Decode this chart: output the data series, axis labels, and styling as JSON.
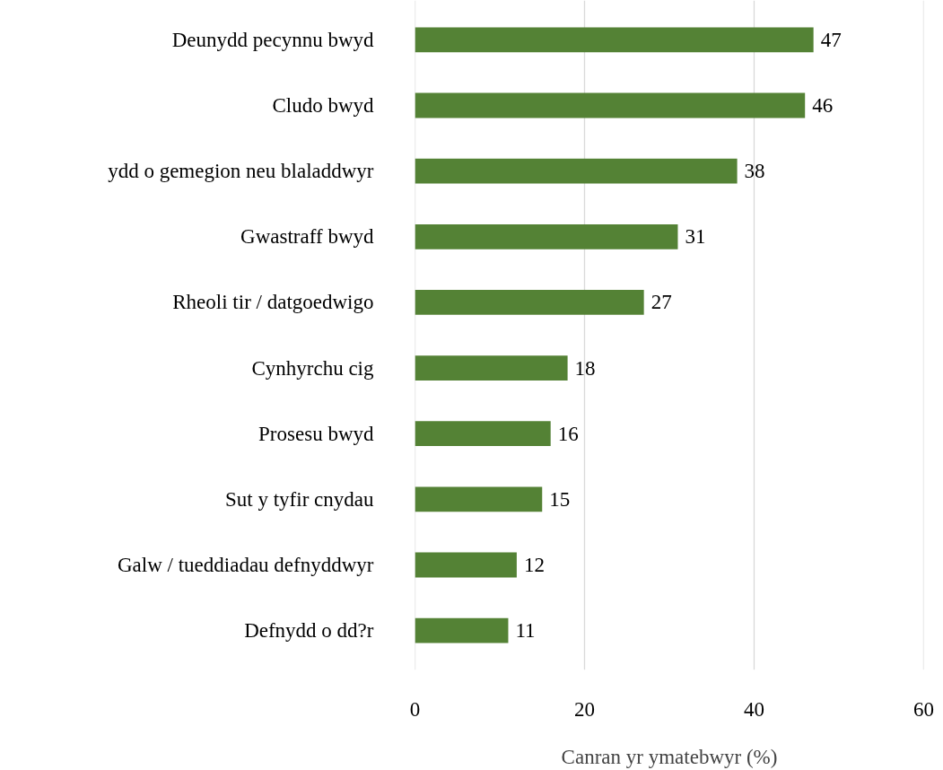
{
  "chart_data": {
    "type": "bar",
    "orientation": "horizontal",
    "xlabel": "Canran yr ymatebwyr (%)",
    "categories": [
      "Deunydd pecynnu bwyd",
      "Cludo bwyd",
      "ydd o gemegion neu blaladdwyr",
      "Gwastraff bwyd",
      "Rheoli tir / datgoedwigo",
      "Cynhyrchu cig",
      "Prosesu bwyd",
      "Sut y tyfir cnydau",
      "Galw / tueddiadau defnyddwyr",
      "Defnydd o dd?r"
    ],
    "values": [
      47,
      46,
      38,
      31,
      27,
      18,
      16,
      15,
      12,
      11
    ],
    "color": "#548235",
    "xlim": [
      0,
      60
    ],
    "xticks": [
      0,
      20,
      40,
      60
    ],
    "grid": "x",
    "data_labels": true
  }
}
